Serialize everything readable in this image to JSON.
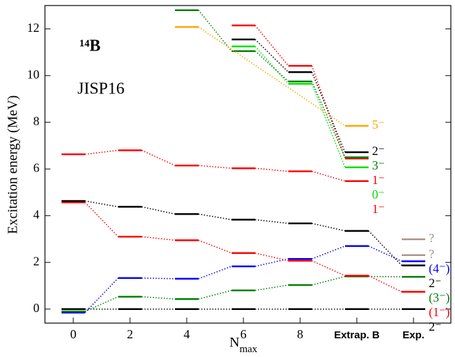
{
  "chart_data": {
    "type": "levels",
    "title": "¹⁴B",
    "subtitle": "JISP16",
    "ylabel": "Excitation energy (MeV)",
    "xlabel": {
      "main": "N",
      "sub": "max"
    },
    "categories": [
      "0",
      "2",
      "4",
      "6",
      "8",
      "Extrap. B",
      "Exp."
    ],
    "ylim": [
      -0.6,
      13
    ],
    "yticks": [
      0,
      2,
      4,
      6,
      8,
      10,
      12
    ],
    "series": [
      {
        "name": "2⁻",
        "color": "#000000",
        "values": [
          0,
          0,
          0,
          0,
          0,
          0,
          0
        ]
      },
      {
        "name": "(4⁻)",
        "color": "#0000ff",
        "values": [
          -0.15,
          1.33,
          1.3,
          1.83,
          2.15,
          2.7,
          2.05
        ]
      },
      {
        "name": "(3⁻)",
        "color": "#008000",
        "values": [
          -0.1,
          0.53,
          0.43,
          0.8,
          1.03,
          1.4,
          1.38
        ]
      },
      {
        "name": "(1⁻)",
        "color": "#ff0000",
        "values": [
          4.57,
          3.1,
          2.95,
          2.4,
          2.07,
          1.43,
          0.74
        ]
      },
      {
        "name": "2⁻",
        "color": "#000000",
        "values": [
          4.63,
          4.38,
          4.07,
          3.83,
          3.67,
          3.35,
          1.87
        ]
      },
      {
        "name": "1⁻",
        "color": "#ff0000",
        "values": [
          6.63,
          6.8,
          6.15,
          6.03,
          5.9,
          5.48,
          null
        ]
      },
      {
        "name": "0⁻",
        "color": "#00e000",
        "values": [
          null,
          null,
          null,
          11.25,
          9.65,
          6.07,
          null
        ]
      },
      {
        "name": "1⁻",
        "color": "#ff0000",
        "values": [
          null,
          null,
          null,
          12.15,
          10.42,
          6.45,
          null
        ]
      },
      {
        "name": "3⁻",
        "color": "#008000",
        "values": [
          null,
          null,
          12.8,
          11.05,
          9.75,
          6.5,
          null
        ]
      },
      {
        "name": "2⁻",
        "color": "#000000",
        "values": [
          null,
          null,
          null,
          11.55,
          10.15,
          6.72,
          null
        ]
      },
      {
        "name": "5⁻",
        "color": "#ffa500",
        "values": [
          null,
          null,
          12.08,
          null,
          null,
          7.85,
          null
        ]
      },
      {
        "name": "?",
        "color": "#b09090",
        "values": [
          null,
          null,
          null,
          null,
          null,
          null,
          2.31
        ]
      },
      {
        "name": "?",
        "color": "#b09090",
        "values": [
          null,
          null,
          null,
          null,
          null,
          null,
          2.99
        ]
      }
    ]
  }
}
